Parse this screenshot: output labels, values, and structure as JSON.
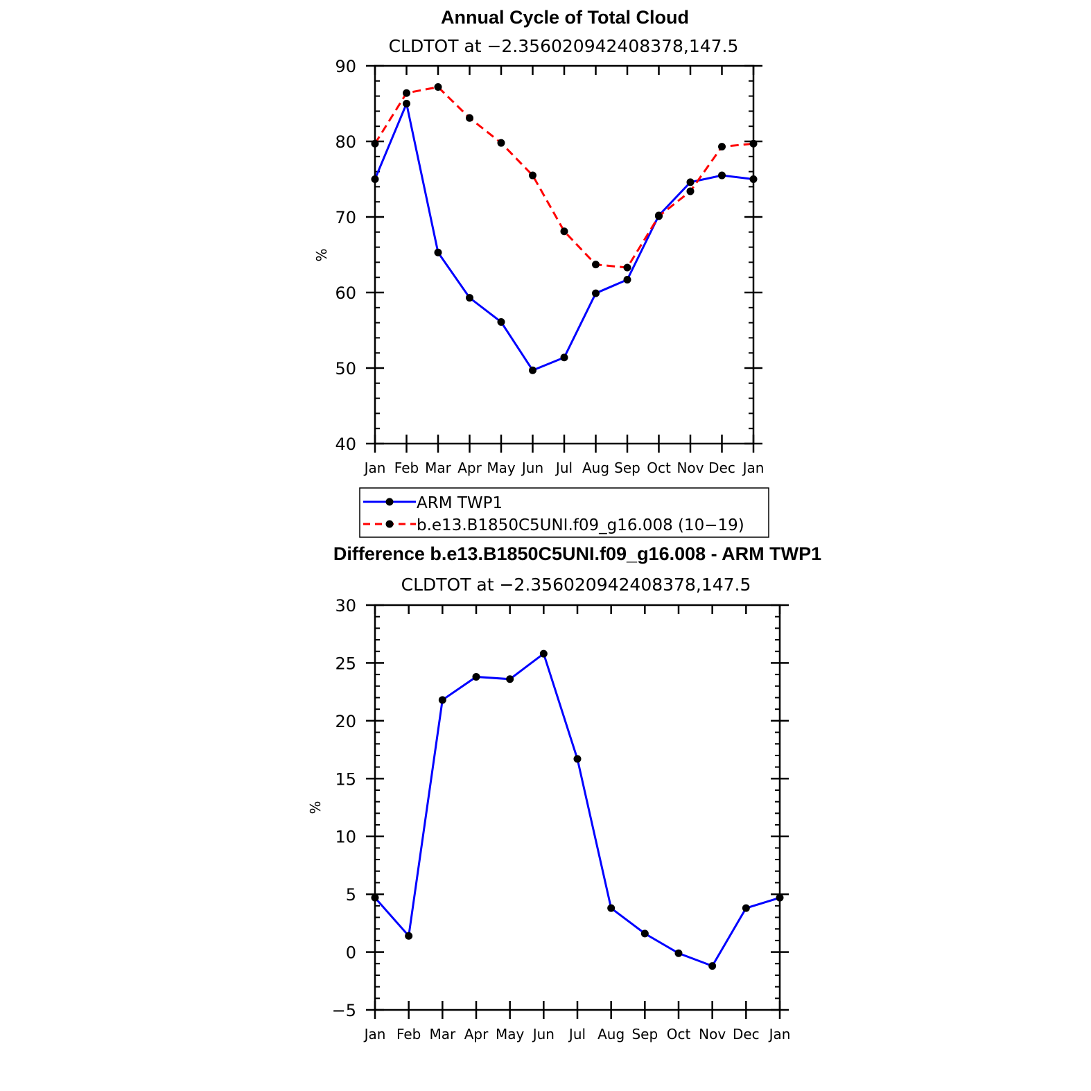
{
  "chart_data": [
    {
      "type": "line",
      "title": "Annual Cycle of Total Cloud",
      "subtitle": "CLDTOT at −2.356020942408378,147.5",
      "xlabel": "",
      "ylabel": "%",
      "categories": [
        "Jan",
        "Feb",
        "Mar",
        "Apr",
        "May",
        "Jun",
        "Jul",
        "Aug",
        "Sep",
        "Oct",
        "Nov",
        "Dec",
        "Jan"
      ],
      "ylim": [
        40,
        90
      ],
      "yticks": [
        40,
        50,
        60,
        70,
        80,
        90
      ],
      "ytick_labels": [
        "40",
        "50",
        "60",
        "70",
        "80",
        "90"
      ],
      "series": [
        {
          "name": "ARM TWP1",
          "color": "#0000ff",
          "dash": "solid",
          "values": [
            75.0,
            85.0,
            65.3,
            59.3,
            56.1,
            49.7,
            51.4,
            59.9,
            61.7,
            70.2,
            74.6,
            75.5,
            75.0
          ]
        },
        {
          "name": "b.e13.B1850C5UNI.f09_g16.008 (10−19)",
          "color": "#ff0000",
          "dash": "dashed",
          "values": [
            79.7,
            86.4,
            87.2,
            83.1,
            79.8,
            75.5,
            68.1,
            63.7,
            63.3,
            70.1,
            73.4,
            79.3,
            79.7
          ]
        }
      ],
      "legend": "bottom"
    },
    {
      "type": "line",
      "title": "Difference b.e13.B1850C5UNI.f09_g16.008 - ARM TWP1",
      "subtitle": "CLDTOT at −2.356020942408378,147.5",
      "xlabel": "",
      "ylabel": "%",
      "categories": [
        "Jan",
        "Feb",
        "Mar",
        "Apr",
        "May",
        "Jun",
        "Jul",
        "Aug",
        "Sep",
        "Oct",
        "Nov",
        "Dec",
        "Jan"
      ],
      "ylim": [
        -5,
        30
      ],
      "yticks": [
        -5,
        0,
        5,
        10,
        15,
        20,
        25,
        30
      ],
      "ytick_labels": [
        "−5",
        "0",
        "5",
        "10",
        "15",
        "20",
        "25",
        "30"
      ],
      "series": [
        {
          "name": "Difference",
          "color": "#0000ff",
          "dash": "solid",
          "values": [
            4.7,
            1.4,
            21.8,
            23.8,
            23.6,
            25.8,
            16.7,
            3.8,
            1.6,
            -0.1,
            -1.2,
            3.8,
            4.7
          ]
        }
      ]
    }
  ]
}
